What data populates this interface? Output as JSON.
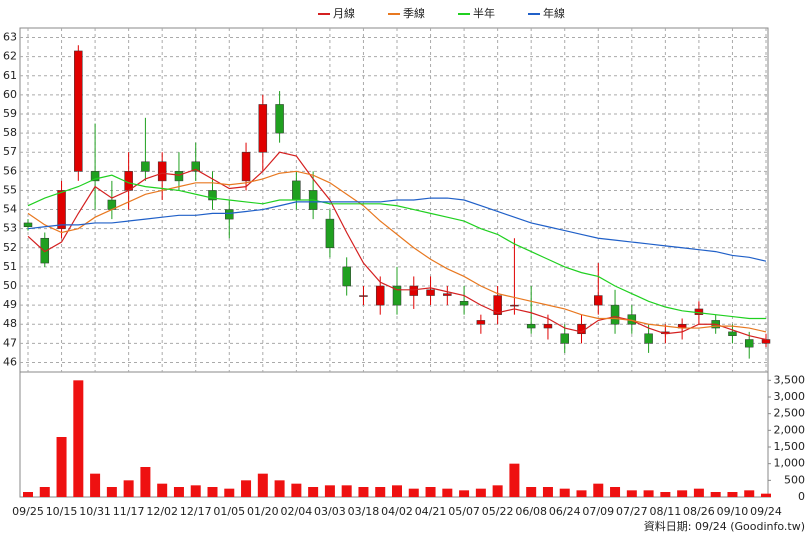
{
  "chart_data": [
    {
      "type": "candlestick",
      "legend_position": "top",
      "grid": true,
      "ylim": [
        45.5,
        63.5
      ],
      "yticks": [
        46,
        47,
        48,
        49,
        50,
        51,
        52,
        53,
        54,
        55,
        56,
        57,
        58,
        59,
        60,
        61,
        62,
        63
      ],
      "up_color": "#e00000",
      "down_color": "#20a020",
      "open": [
        53.3,
        52.5,
        53,
        56,
        56,
        54.5,
        55,
        56.5,
        55.5,
        56,
        56.5,
        55,
        54,
        55.5,
        57,
        59.5,
        55.5,
        55,
        53.5,
        51,
        49.5,
        49,
        50,
        49.5,
        49.5,
        49.5,
        49.2,
        48,
        48.5,
        49,
        48,
        47.8,
        47.5,
        47.5,
        49,
        49,
        48.5,
        47.5,
        47.5,
        47.8,
        48.5,
        48.2,
        47.6,
        47.2,
        47
      ],
      "high": [
        53.5,
        52.8,
        55.5,
        62.6,
        58.5,
        55.5,
        57,
        58.8,
        57,
        57,
        57.5,
        56,
        54.5,
        57.5,
        60,
        60.2,
        56,
        56,
        54,
        51.5,
        50,
        50.5,
        51,
        50.5,
        50.5,
        50,
        50,
        48.5,
        50,
        52.5,
        50,
        48.5,
        48,
        48.5,
        51.2,
        49.8,
        49,
        48,
        48,
        48.3,
        49.2,
        48.5,
        48,
        47.6,
        47.5
      ],
      "low": [
        52.9,
        51,
        52.5,
        55.5,
        54,
        53.5,
        54,
        55.5,
        54.5,
        55,
        55.5,
        54,
        52.5,
        55,
        56,
        57.5,
        54,
        53.5,
        51.5,
        49.5,
        49,
        48.5,
        48.5,
        48.8,
        49,
        49,
        48.5,
        47.5,
        48,
        48.5,
        47.5,
        47.2,
        46.5,
        47,
        48.5,
        47.5,
        47.5,
        46.5,
        47,
        47.2,
        48,
        47.5,
        47,
        46.2,
        46.8
      ],
      "close": [
        53.1,
        51.2,
        55,
        62.3,
        55.5,
        54,
        56,
        56,
        56.5,
        55.5,
        56,
        54.5,
        53.5,
        57,
        59.5,
        58,
        54.5,
        54,
        52,
        50,
        49.5,
        50,
        49,
        50,
        49.8,
        49.6,
        49,
        48.2,
        49.5,
        49,
        47.8,
        48,
        47,
        48,
        49.5,
        48,
        48,
        47,
        47.6,
        48,
        48.8,
        47.8,
        47.4,
        46.8,
        47.2
      ],
      "series": [
        {
          "name": "月線",
          "color": "#d42020",
          "values": [
            52.6,
            51.8,
            52.3,
            53.8,
            55.2,
            54.6,
            55.0,
            55.6,
            55.9,
            55.8,
            56.1,
            55.6,
            55.1,
            55.2,
            56.0,
            57.0,
            56.8,
            55.6,
            54.5,
            52.8,
            51.2,
            50.2,
            49.8,
            49.8,
            49.9,
            49.7,
            49.5,
            49.0,
            48.6,
            48.8,
            48.6,
            48.3,
            47.8,
            47.6,
            48.2,
            48.4,
            48.2,
            47.8,
            47.5,
            47.6,
            48.0,
            48.0,
            47.7,
            47.4,
            47.2
          ]
        },
        {
          "name": "季線",
          "color": "#e87820",
          "values": [
            53.8,
            53.2,
            52.8,
            53.0,
            53.6,
            54.0,
            54.4,
            54.8,
            55.0,
            55.2,
            55.4,
            55.4,
            55.3,
            55.4,
            55.6,
            55.9,
            56.0,
            55.8,
            55.4,
            54.8,
            54.2,
            53.4,
            52.7,
            52.0,
            51.4,
            50.9,
            50.5,
            50.0,
            49.6,
            49.4,
            49.2,
            49.0,
            48.8,
            48.5,
            48.3,
            48.3,
            48.2,
            48.0,
            47.9,
            47.8,
            47.8,
            47.9,
            47.9,
            47.8,
            47.6
          ]
        },
        {
          "name": "半年",
          "color": "#20d020",
          "values": [
            54.2,
            54.6,
            54.9,
            55.2,
            55.6,
            55.8,
            55.4,
            55.2,
            55.1,
            55.0,
            54.8,
            54.6,
            54.5,
            54.4,
            54.3,
            54.5,
            54.5,
            54.5,
            54.3,
            54.3,
            54.3,
            54.3,
            54.2,
            54.0,
            53.8,
            53.6,
            53.4,
            53.0,
            52.7,
            52.2,
            51.8,
            51.4,
            51.0,
            50.7,
            50.5,
            50.0,
            49.6,
            49.2,
            48.9,
            48.7,
            48.6,
            48.5,
            48.4,
            48.3,
            48.3
          ]
        },
        {
          "name": "年線",
          "color": "#2060c8",
          "values": [
            53.0,
            53.1,
            53.2,
            53.2,
            53.3,
            53.3,
            53.4,
            53.5,
            53.6,
            53.7,
            53.7,
            53.8,
            53.8,
            53.9,
            54.0,
            54.2,
            54.4,
            54.4,
            54.4,
            54.4,
            54.4,
            54.4,
            54.5,
            54.5,
            54.6,
            54.6,
            54.5,
            54.2,
            53.9,
            53.6,
            53.3,
            53.1,
            52.9,
            52.7,
            52.5,
            52.4,
            52.3,
            52.2,
            52.1,
            52.0,
            51.9,
            51.8,
            51.6,
            51.5,
            51.3
          ]
        }
      ]
    },
    {
      "type": "bar",
      "color": "#ee1111",
      "ylim": [
        0,
        3750
      ],
      "yticks": [
        0,
        500,
        {
          "value": 1000,
          "label": "1,000"
        },
        {
          "value": 1500,
          "label": "1,500"
        },
        {
          "value": 2000,
          "label": "2,000"
        },
        {
          "value": 2500,
          "label": "2,500"
        },
        {
          "value": 3000,
          "label": "3,000"
        },
        {
          "value": 3500,
          "label": "3,500"
        }
      ],
      "categories": [
        "09/25",
        null,
        "10/15",
        null,
        "10/31",
        null,
        "11/17",
        null,
        "12/02",
        null,
        "12/17",
        null,
        "01/05",
        null,
        "01/20",
        null,
        "02/04",
        null,
        "03/03",
        null,
        "03/18",
        null,
        "04/02",
        null,
        "04/21",
        null,
        "05/07",
        null,
        "05/22",
        null,
        "06/08",
        null,
        "06/24",
        null,
        "07/09",
        null,
        "07/27",
        null,
        "08/11",
        null,
        "08/26",
        null,
        "09/10",
        null,
        "09/24"
      ],
      "values": [
        150,
        300,
        1800,
        3500,
        700,
        300,
        500,
        900,
        400,
        300,
        350,
        300,
        250,
        500,
        700,
        500,
        400,
        300,
        350,
        350,
        300,
        300,
        350,
        250,
        300,
        250,
        200,
        250,
        350,
        1000,
        300,
        300,
        250,
        200,
        400,
        300,
        200,
        200,
        150,
        200,
        250,
        150,
        150,
        200,
        100
      ],
      "source": "資料日期: 09/24  (Goodinfo.tw)"
    }
  ]
}
